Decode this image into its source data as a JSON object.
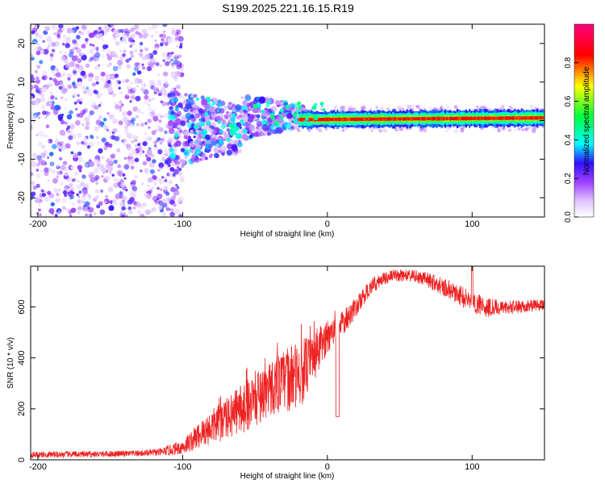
{
  "title": "S199.2025.221.16.15.R19",
  "chart_data": [
    {
      "type": "heatmap",
      "name": "spectrogram",
      "xlabel": "Height of straight line (km)",
      "ylabel": "Frequency (Hz)",
      "xlim": [
        -205,
        150
      ],
      "ylim": [
        -25,
        25
      ],
      "xticks": [
        {
          "value": -200,
          "label": "-200"
        },
        {
          "value": -100,
          "label": "-100"
        },
        {
          "value": 0,
          "label": "0"
        },
        {
          "value": 100,
          "label": "100"
        }
      ],
      "yticks": [
        {
          "value": 20,
          "label": "20"
        },
        {
          "value": 10,
          "label": "10"
        },
        {
          "value": 0,
          "label": "0"
        },
        {
          "value": -10,
          "label": "-10"
        },
        {
          "value": -20,
          "label": "-20"
        }
      ],
      "colorbar": {
        "label": "Normalized spectral amplitude",
        "range": [
          0,
          1
        ],
        "ticks": [
          {
            "value": 0.0,
            "label": "0.0"
          },
          {
            "value": 0.2,
            "label": "0.2"
          },
          {
            "value": 0.4,
            "label": "0.4"
          },
          {
            "value": 0.6,
            "label": "0.6"
          },
          {
            "value": 0.8,
            "label": "0.8"
          }
        ],
        "colors": [
          "#ffffff",
          "#e0c8ff",
          "#a040ff",
          "#3010ff",
          "#00ffff",
          "#00ff40",
          "#ffff00",
          "#ff0000",
          "#ff0080"
        ]
      },
      "regions": [
        {
          "x_range": [
            -205,
            -100
          ],
          "freq_spread_hz": 25,
          "amplitude": 0.15
        },
        {
          "x_range": [
            -100,
            -20
          ],
          "freq_spread_hz": 8,
          "amplitude": 0.3
        },
        {
          "x_range": [
            -20,
            150
          ],
          "freq_center_hz": 0.5,
          "freq_spread_hz": 2,
          "amplitude": 0.9
        }
      ]
    },
    {
      "type": "line",
      "name": "snr",
      "xlabel": "Height of straight line (km)",
      "ylabel": "SNR (10 * v/v)",
      "xlim": [
        -205,
        150
      ],
      "ylim": [
        0,
        760
      ],
      "color": "#ee2222",
      "xticks": [
        {
          "value": -200,
          "label": "-200"
        },
        {
          "value": -100,
          "label": "-100"
        },
        {
          "value": 0,
          "label": "0"
        },
        {
          "value": 100,
          "label": "100"
        }
      ],
      "yticks": [
        {
          "value": 0,
          "label": "0"
        },
        {
          "value": 200,
          "label": "200"
        },
        {
          "value": 400,
          "label": "400"
        },
        {
          "value": 600,
          "label": "600"
        }
      ],
      "envelope": {
        "x": [
          -205,
          -160,
          -130,
          -115,
          -100,
          -90,
          -80,
          -70,
          -60,
          -50,
          -40,
          -30,
          -20,
          -12,
          -5,
          0,
          10,
          20,
          30,
          40,
          50,
          60,
          70,
          80,
          90,
          100,
          110,
          120,
          130,
          140,
          150
        ],
        "mean": [
          20,
          22,
          25,
          30,
          50,
          90,
          130,
          160,
          200,
          240,
          280,
          310,
          330,
          380,
          440,
          480,
          530,
          600,
          680,
          715,
          725,
          720,
          705,
          680,
          650,
          620,
          600,
          595,
          600,
          605,
          610
        ],
        "noise": [
          12,
          12,
          12,
          15,
          30,
          50,
          70,
          80,
          100,
          110,
          110,
          120,
          140,
          110,
          90,
          60,
          50,
          40,
          30,
          25,
          25,
          25,
          30,
          35,
          40,
          45,
          40,
          30,
          25,
          25,
          25
        ]
      }
    }
  ]
}
